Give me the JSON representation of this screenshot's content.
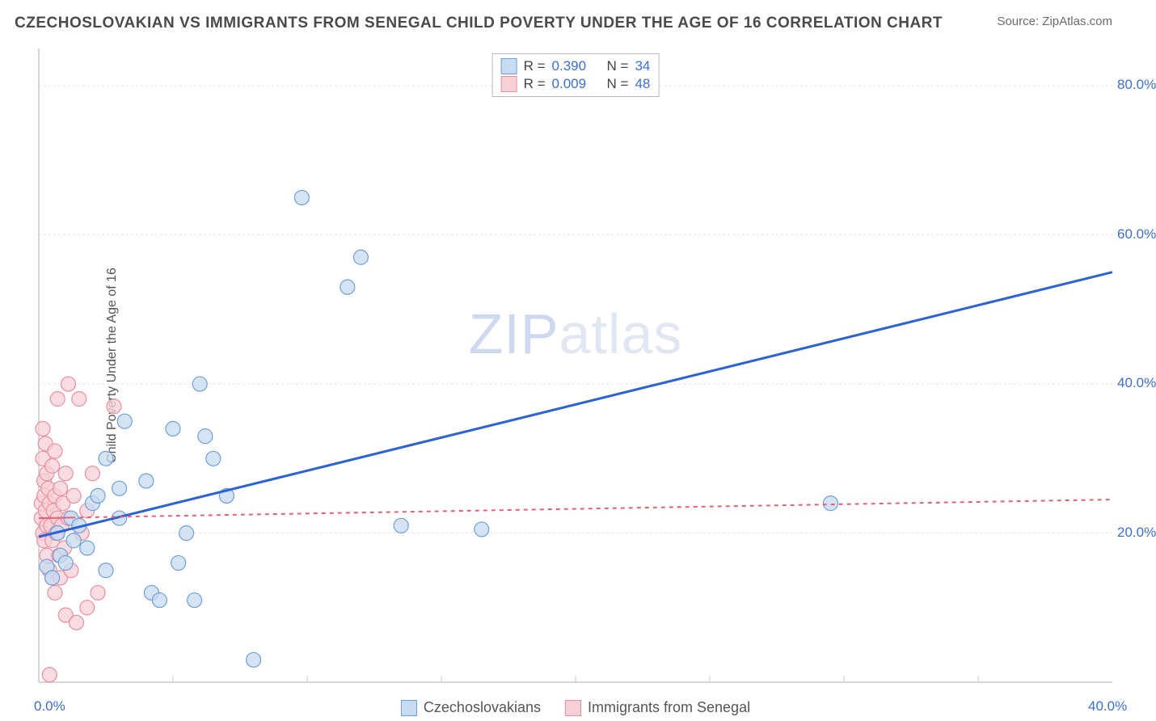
{
  "title": "CZECHOSLOVAKIAN VS IMMIGRANTS FROM SENEGAL CHILD POVERTY UNDER THE AGE OF 16 CORRELATION CHART",
  "source": "Source: ZipAtlas.com",
  "ylabel": "Child Poverty Under the Age of 16",
  "watermark_prefix": "ZIP",
  "watermark_suffix": "atlas",
  "chart": {
    "type": "scatter-with-regression",
    "background_color": "#ffffff",
    "gridline_color": "#e2e2e2",
    "axis_line_color": "#c8c8c8",
    "xlim": [
      0,
      40
    ],
    "ylim": [
      0,
      85
    ],
    "x_ticks": [
      {
        "pos": 0,
        "label": "0.0%"
      },
      {
        "pos": 40,
        "label": "40.0%"
      }
    ],
    "x_minor_ticks": [
      5,
      10,
      15,
      20,
      25,
      30,
      35
    ],
    "y_ticks": [
      {
        "pos": 20,
        "label": "20.0%"
      },
      {
        "pos": 40,
        "label": "40.0%"
      },
      {
        "pos": 60,
        "label": "60.0%"
      },
      {
        "pos": 80,
        "label": "80.0%"
      }
    ],
    "series": [
      {
        "name": "Czechoslovakians",
        "marker_fill": "#c7dbf2",
        "marker_stroke": "#6f9fd8",
        "marker_radius": 9,
        "line_color": "#2b62d9",
        "line_width": 3,
        "line_dash": "none",
        "R": "0.390",
        "N": "34",
        "regression": {
          "x1": 0,
          "y1": 19.5,
          "x2": 40,
          "y2": 55
        },
        "solid_until_x": 2.5,
        "points": [
          {
            "x": 0.3,
            "y": 15.5
          },
          {
            "x": 0.5,
            "y": 14
          },
          {
            "x": 0.7,
            "y": 20
          },
          {
            "x": 0.8,
            "y": 17
          },
          {
            "x": 1.0,
            "y": 16
          },
          {
            "x": 1.2,
            "y": 22
          },
          {
            "x": 1.3,
            "y": 19
          },
          {
            "x": 1.5,
            "y": 21
          },
          {
            "x": 1.8,
            "y": 18
          },
          {
            "x": 2.0,
            "y": 24
          },
          {
            "x": 2.2,
            "y": 25
          },
          {
            "x": 2.5,
            "y": 30
          },
          {
            "x": 2.5,
            "y": 15
          },
          {
            "x": 3.0,
            "y": 22
          },
          {
            "x": 3.0,
            "y": 26
          },
          {
            "x": 3.2,
            "y": 35
          },
          {
            "x": 4.0,
            "y": 27
          },
          {
            "x": 4.2,
            "y": 12
          },
          {
            "x": 4.5,
            "y": 11
          },
          {
            "x": 5.0,
            "y": 34
          },
          {
            "x": 5.2,
            "y": 16
          },
          {
            "x": 5.5,
            "y": 20
          },
          {
            "x": 5.8,
            "y": 11
          },
          {
            "x": 6.0,
            "y": 40
          },
          {
            "x": 6.2,
            "y": 33
          },
          {
            "x": 6.5,
            "y": 30
          },
          {
            "x": 7.0,
            "y": 25
          },
          {
            "x": 8.0,
            "y": 3
          },
          {
            "x": 9.8,
            "y": 65
          },
          {
            "x": 11.5,
            "y": 53
          },
          {
            "x": 12.0,
            "y": 57
          },
          {
            "x": 13.5,
            "y": 21
          },
          {
            "x": 16.5,
            "y": 20.5
          },
          {
            "x": 29.5,
            "y": 24
          }
        ]
      },
      {
        "name": "Immigrants from Senegal",
        "marker_fill": "#f6d0d7",
        "marker_stroke": "#e88fa0",
        "marker_radius": 9,
        "line_color": "#e26178",
        "line_width": 2,
        "line_dash": "5,5",
        "R": "0.009",
        "N": "48",
        "regression": {
          "x1": 0,
          "y1": 22,
          "x2": 40,
          "y2": 24.5
        },
        "solid_until_x": 1.2,
        "points": [
          {
            "x": 0.1,
            "y": 24
          },
          {
            "x": 0.1,
            "y": 22
          },
          {
            "x": 0.15,
            "y": 30
          },
          {
            "x": 0.15,
            "y": 20
          },
          {
            "x": 0.2,
            "y": 27
          },
          {
            "x": 0.2,
            "y": 25
          },
          {
            "x": 0.2,
            "y": 19
          },
          {
            "x": 0.25,
            "y": 32
          },
          {
            "x": 0.25,
            "y": 23
          },
          {
            "x": 0.3,
            "y": 28
          },
          {
            "x": 0.3,
            "y": 21
          },
          {
            "x": 0.3,
            "y": 17
          },
          {
            "x": 0.35,
            "y": 26
          },
          {
            "x": 0.4,
            "y": 24
          },
          {
            "x": 0.4,
            "y": 15
          },
          {
            "x": 0.45,
            "y": 21
          },
          {
            "x": 0.5,
            "y": 29
          },
          {
            "x": 0.5,
            "y": 19
          },
          {
            "x": 0.5,
            "y": 14
          },
          {
            "x": 0.55,
            "y": 23
          },
          {
            "x": 0.6,
            "y": 31
          },
          {
            "x": 0.6,
            "y": 25
          },
          {
            "x": 0.6,
            "y": 12
          },
          {
            "x": 0.65,
            "y": 20
          },
          {
            "x": 0.7,
            "y": 38
          },
          {
            "x": 0.7,
            "y": 22
          },
          {
            "x": 0.75,
            "y": 17
          },
          {
            "x": 0.8,
            "y": 26
          },
          {
            "x": 0.8,
            "y": 14
          },
          {
            "x": 0.85,
            "y": 21
          },
          {
            "x": 0.9,
            "y": 24
          },
          {
            "x": 0.95,
            "y": 18
          },
          {
            "x": 1.0,
            "y": 28
          },
          {
            "x": 1.0,
            "y": 9
          },
          {
            "x": 1.1,
            "y": 40
          },
          {
            "x": 1.1,
            "y": 22
          },
          {
            "x": 1.2,
            "y": 15
          },
          {
            "x": 1.3,
            "y": 25
          },
          {
            "x": 1.4,
            "y": 8
          },
          {
            "x": 1.5,
            "y": 38
          },
          {
            "x": 1.6,
            "y": 20
          },
          {
            "x": 1.8,
            "y": 10
          },
          {
            "x": 1.8,
            "y": 23
          },
          {
            "x": 2.0,
            "y": 28
          },
          {
            "x": 2.2,
            "y": 12
          },
          {
            "x": 2.8,
            "y": 37
          },
          {
            "x": 0.4,
            "y": 1
          },
          {
            "x": 0.15,
            "y": 34
          }
        ]
      }
    ]
  },
  "legend_top": {
    "r_label": "R =",
    "n_label": "N ="
  }
}
